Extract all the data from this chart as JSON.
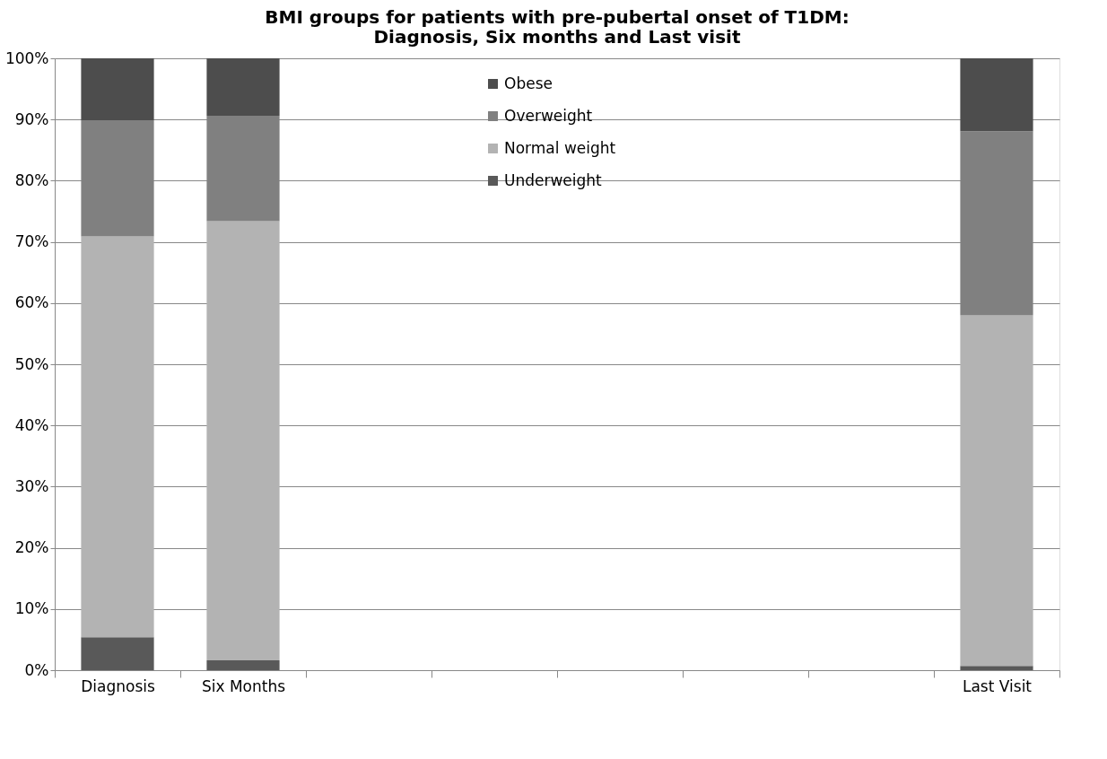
{
  "chart_data": {
    "type": "bar",
    "stacked": true,
    "title": [
      "BMI groups for patients with pre-pubertal onset of T1DM:",
      "Diagnosis, Six  months and Last visit"
    ],
    "categories": [
      "Diagnosis",
      "Six Months",
      null,
      null,
      null,
      null,
      null,
      "Last Visit"
    ],
    "series": [
      {
        "name": "Underweight",
        "color": "#595959",
        "values": [
          5.4,
          1.6,
          null,
          null,
          null,
          null,
          null,
          0.7
        ]
      },
      {
        "name": "Normal weight",
        "color": "#b3b3b3",
        "values": [
          65.5,
          71.8,
          null,
          null,
          null,
          null,
          null,
          57.3
        ]
      },
      {
        "name": "Overweight",
        "color": "#808080",
        "values": [
          19.0,
          17.2,
          null,
          null,
          null,
          null,
          null,
          30.1
        ]
      },
      {
        "name": "Obese",
        "color": "#4d4d4d",
        "values": [
          10.1,
          9.4,
          null,
          null,
          null,
          null,
          null,
          11.9
        ]
      }
    ],
    "ylim": [
      0,
      100
    ],
    "yticks": [
      {
        "value": 0,
        "label": "0%"
      },
      {
        "value": 10,
        "label": "10%"
      },
      {
        "value": 20,
        "label": "20%"
      },
      {
        "value": 30,
        "label": "30%"
      },
      {
        "value": 40,
        "label": "40%"
      },
      {
        "value": 50,
        "label": "50%"
      },
      {
        "value": 60,
        "label": "60%"
      },
      {
        "value": 70,
        "label": "70%"
      },
      {
        "value": 80,
        "label": "80%"
      },
      {
        "value": 90,
        "label": "90%"
      },
      {
        "value": 100,
        "label": "100%"
      }
    ],
    "grid": "y",
    "legend": "top"
  }
}
